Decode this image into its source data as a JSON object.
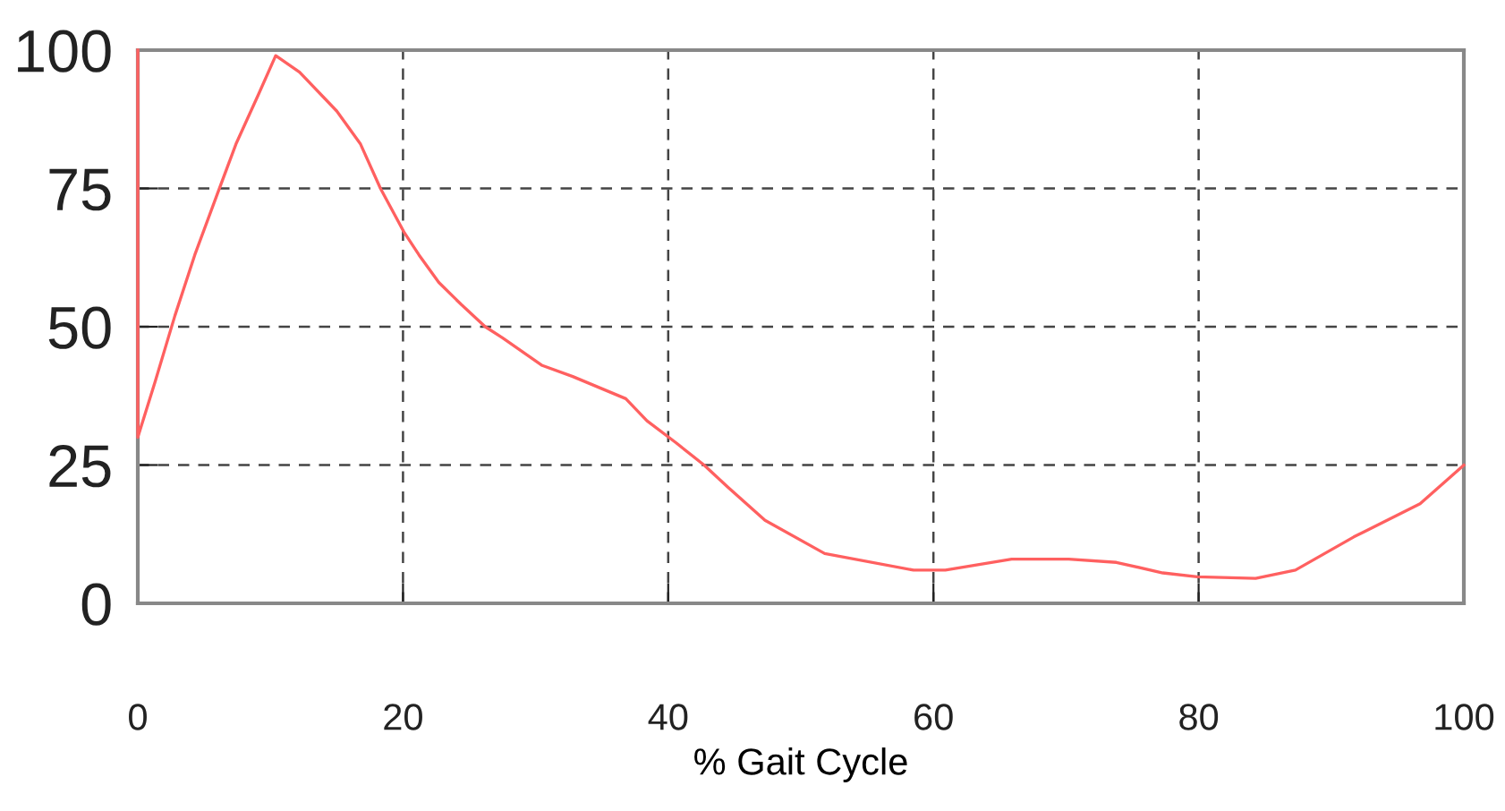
{
  "chart_data": {
    "type": "line",
    "xlabel": "% Gait Cycle",
    "series": [
      {
        "color": "#ff6060",
        "x": [
          0,
          0,
          1.3,
          2.8,
          4.3,
          6.0,
          7.4,
          9.1,
          10.4,
          12.2,
          15.0,
          16.8,
          18.3,
          20.1,
          21.2,
          22.7,
          24.4,
          26.2,
          27.5,
          30.5,
          32.8,
          36.8,
          38.4,
          40.6,
          42.7,
          44.5,
          47.3,
          51.8,
          58.5,
          60.9,
          65.9,
          70.2,
          73.8,
          77.3,
          79.9,
          84.3,
          87.3,
          91.7,
          96.7,
          100
        ],
        "values": [
          100,
          30,
          40,
          52,
          63,
          74,
          83,
          92,
          99,
          96,
          89,
          83,
          75,
          67,
          63,
          58,
          54,
          50,
          48,
          43,
          41,
          37,
          33,
          29,
          25,
          21,
          15,
          9,
          6,
          6,
          8,
          8,
          7.4,
          5.5,
          4.8,
          4.5,
          6,
          12,
          18,
          25
        ]
      }
    ],
    "xlim": [
      0,
      100
    ],
    "ylim": [
      0,
      100
    ],
    "xticks": [
      0,
      20,
      40,
      60,
      80,
      100
    ],
    "yticks": [
      0,
      25,
      50,
      75,
      100
    ],
    "grid": true,
    "marker": "none",
    "line_style": "solid"
  }
}
